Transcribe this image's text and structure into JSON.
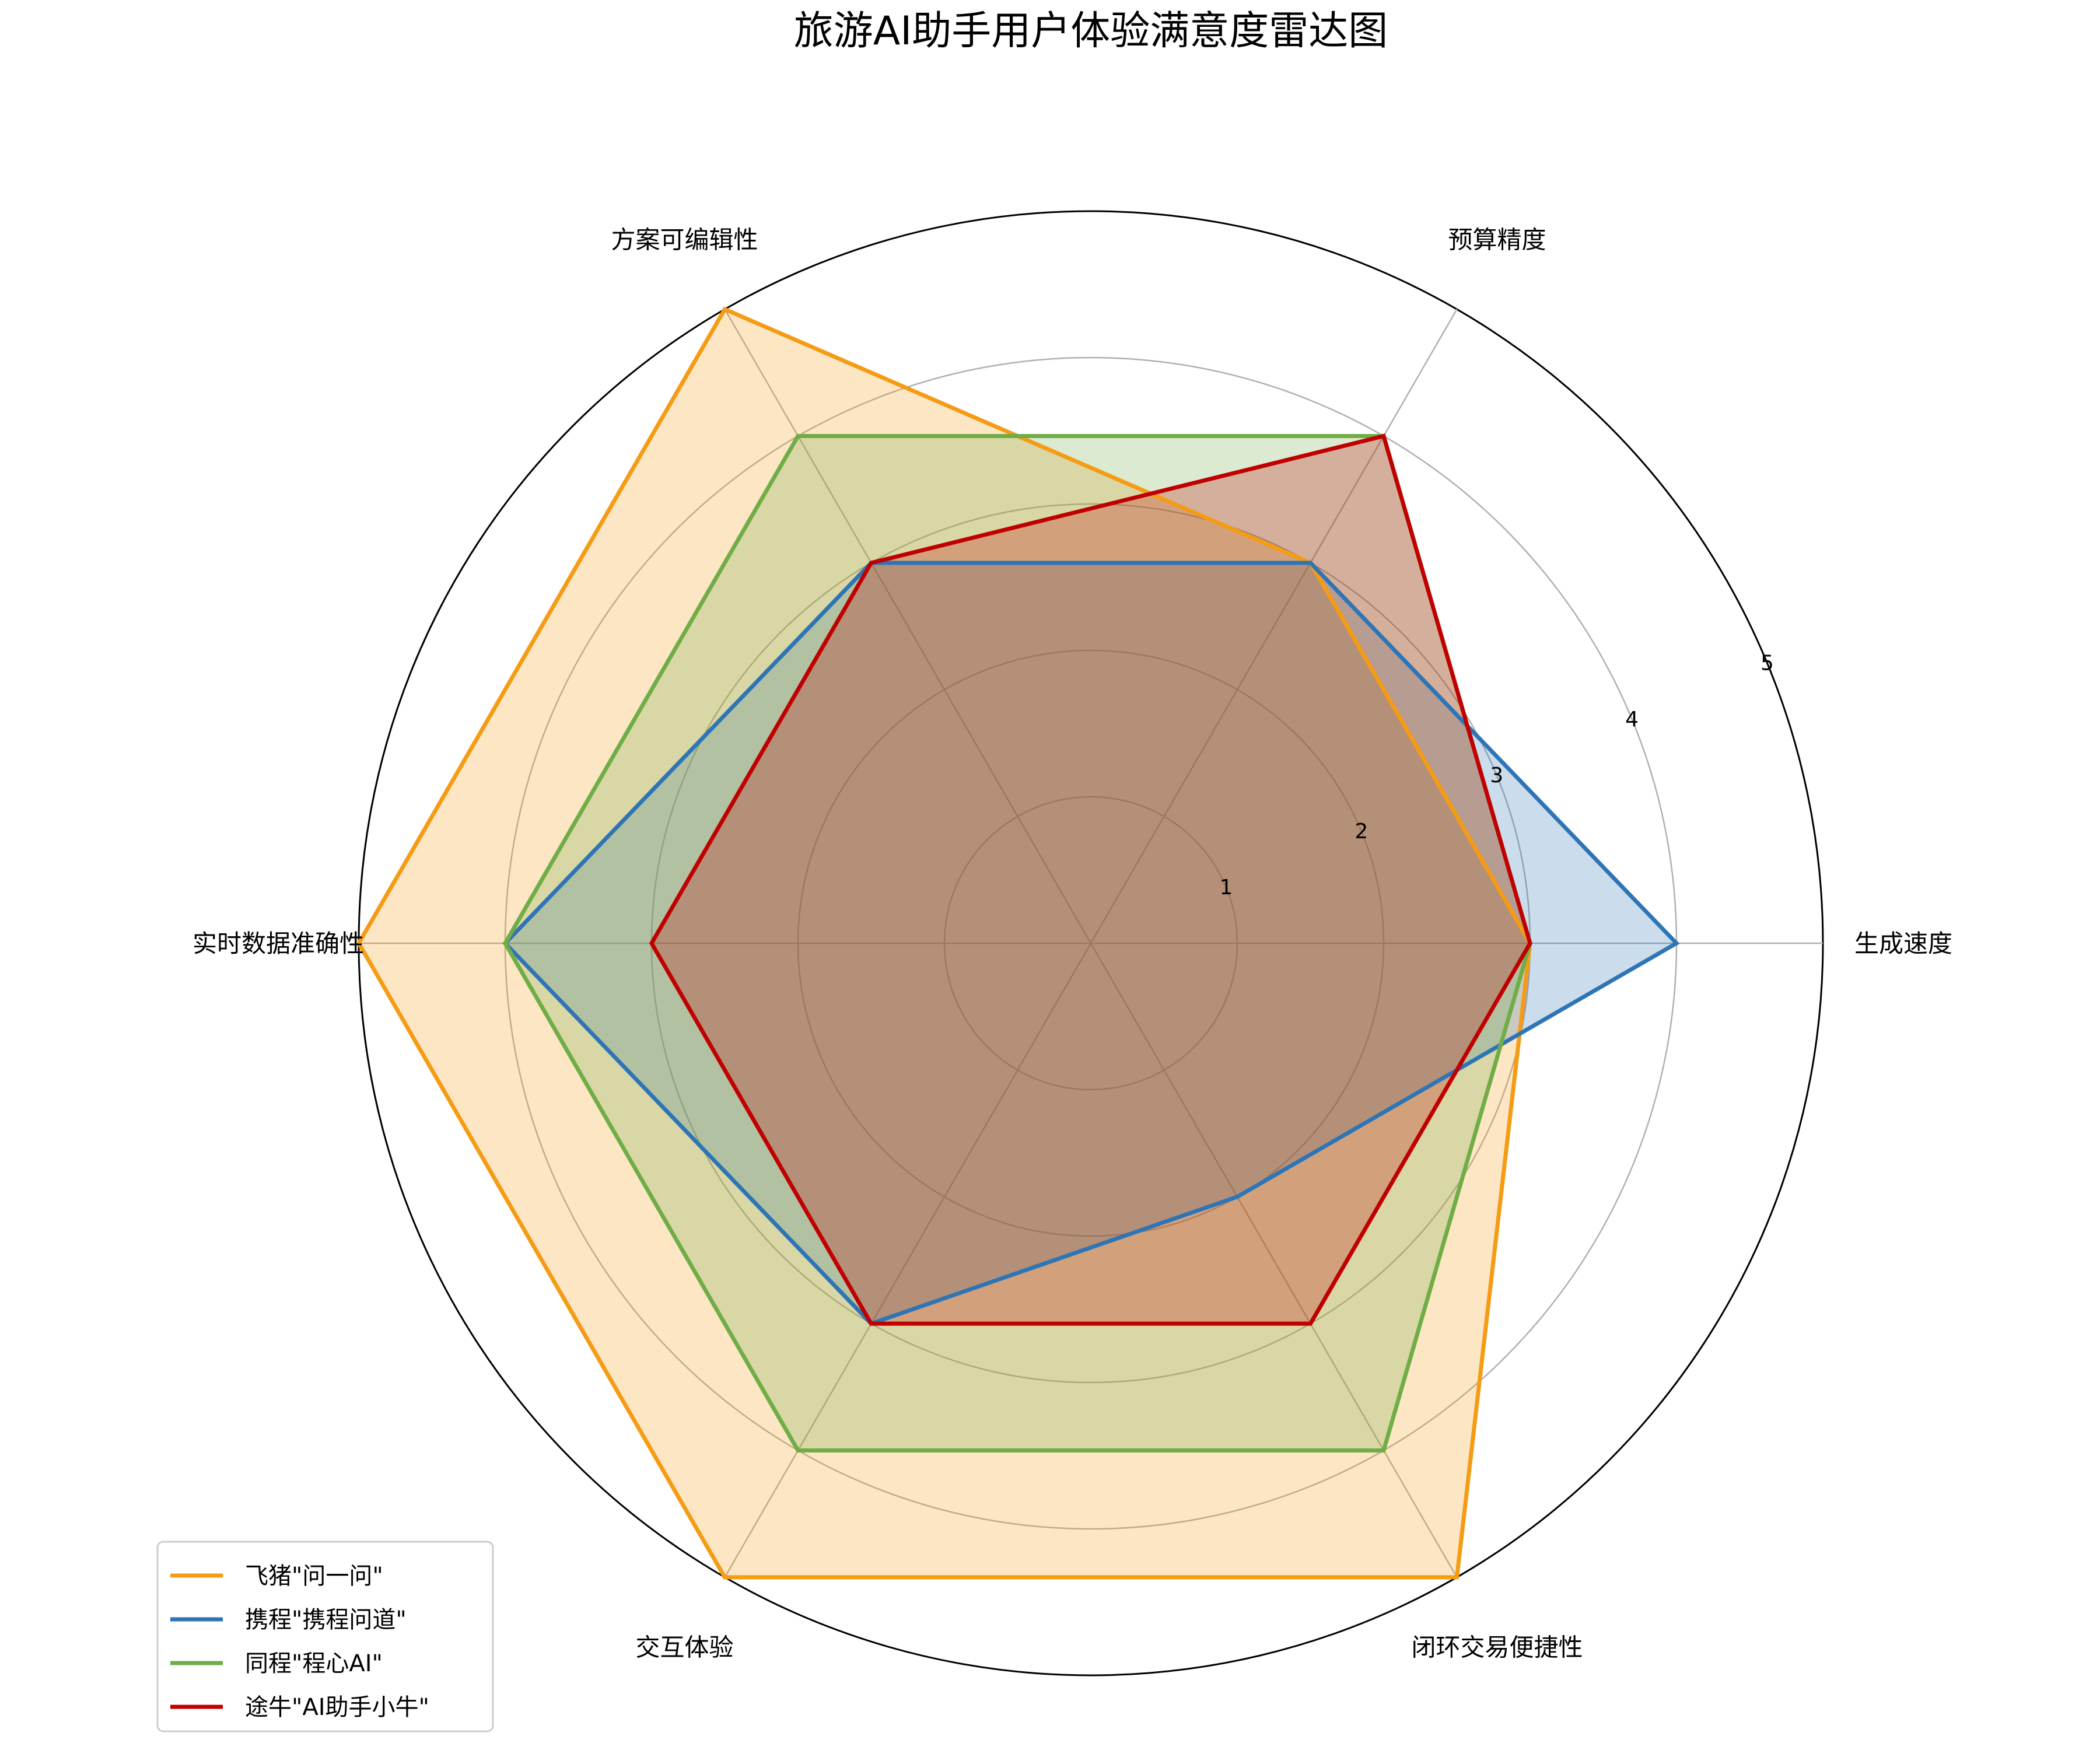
{
  "chart_data": {
    "type": "radar",
    "title": "旅游AI助手用户体验满意度雷达图",
    "axes": [
      "生成速度",
      "预算精度",
      "方案可编辑性",
      "实时数据准确性",
      "交互体验",
      "闭环交易便捷性"
    ],
    "r_range": [
      0,
      5
    ],
    "r_ticks": [
      1,
      2,
      3,
      4,
      5
    ],
    "grid": true,
    "legend_position": "lower-left",
    "series": [
      {
        "name": "飞猪\"问一问\"",
        "color": "#f59b14",
        "values": [
          3,
          3,
          5,
          5,
          5,
          5
        ]
      },
      {
        "name": "携程\"携程问道\"",
        "color": "#2e75b6",
        "values": [
          4,
          3,
          3,
          4,
          3,
          2
        ]
      },
      {
        "name": "同程\"程心AI\"",
        "color": "#70ad47",
        "values": [
          3,
          4,
          4,
          4,
          4,
          4
        ]
      },
      {
        "name": "途牛\"AI助手小牛\"",
        "color": "#c00000",
        "values": [
          3,
          4,
          3,
          3,
          3,
          3
        ]
      }
    ]
  }
}
